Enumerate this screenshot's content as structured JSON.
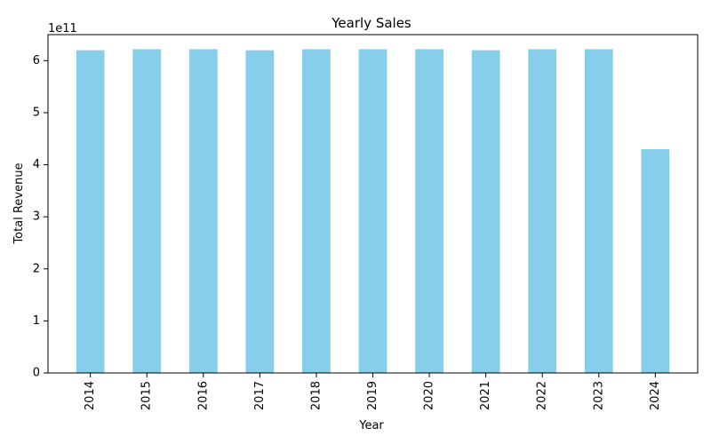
{
  "chart_data": {
    "type": "bar",
    "title": "Yearly Sales",
    "xlabel": "Year",
    "ylabel": "Total Revenue",
    "scale_label": "1e11",
    "categories": [
      "2014",
      "2015",
      "2016",
      "2017",
      "2018",
      "2019",
      "2020",
      "2021",
      "2022",
      "2023",
      "2024"
    ],
    "values": [
      620000000000,
      622000000000,
      622000000000,
      620000000000,
      622000000000,
      622000000000,
      622000000000,
      620000000000,
      622000000000,
      622000000000,
      430000000000
    ],
    "ylim": [
      0,
      650000000000
    ],
    "yticks": [
      0,
      100000000000,
      200000000000,
      300000000000,
      400000000000,
      500000000000,
      600000000000
    ],
    "ytick_labels": [
      "0",
      "1",
      "2",
      "3",
      "4",
      "5",
      "6"
    ],
    "bar_color": "#87ceeb",
    "grid": false,
    "legend": "none"
  }
}
